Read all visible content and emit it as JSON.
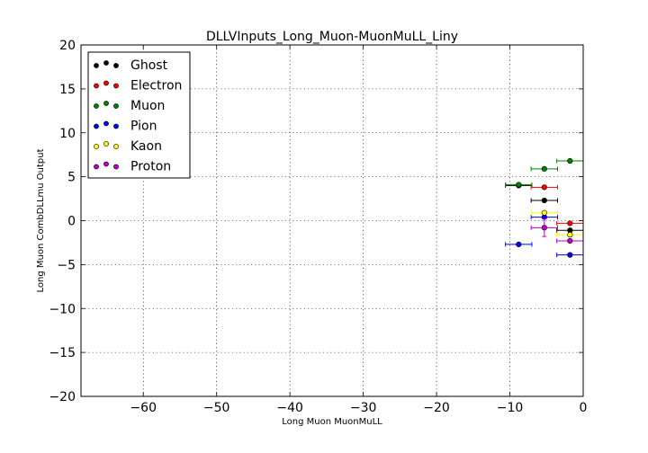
{
  "chart_data": {
    "type": "scatter",
    "title": "DLLVInputs_Long_Muon-MuonMuLL_Liny",
    "xlabel": "Long Muon MuonMuLL",
    "ylabel": "Long Muon CombDLLmu Output",
    "xlim": [
      -68.5,
      0
    ],
    "ylim": [
      -20,
      20
    ],
    "xticks": [
      -60,
      -50,
      -40,
      -30,
      -20,
      -10,
      0
    ],
    "yticks": [
      -20,
      -15,
      -10,
      -5,
      0,
      5,
      10,
      15,
      20
    ],
    "xtick_labels": [
      "−60",
      "−50",
      "−40",
      "−30",
      "−20",
      "−10",
      "0"
    ],
    "ytick_labels": [
      "−20",
      "−15",
      "−10",
      "−5",
      "0",
      "5",
      "10",
      "15",
      "20"
    ],
    "grid": true,
    "legend_position": "top-left",
    "series": [
      {
        "name": "Ghost",
        "color": "#000000",
        "points": [
          {
            "x": -8.8,
            "xerr": 1.8,
            "y": 4.0,
            "yerr": 0
          },
          {
            "x": -5.3,
            "xerr": 1.8,
            "y": 2.3,
            "yerr": 0
          },
          {
            "x": -1.8,
            "xerr": 1.8,
            "y": -1.1,
            "yerr": 0
          }
        ]
      },
      {
        "name": "Electron",
        "color": "#ff0000",
        "points": [
          {
            "x": -5.3,
            "xerr": 1.8,
            "y": 3.8,
            "yerr": 0
          },
          {
            "x": -1.8,
            "xerr": 1.8,
            "y": -0.3,
            "yerr": 0
          }
        ]
      },
      {
        "name": "Muon",
        "color": "#008000",
        "points": [
          {
            "x": -8.8,
            "xerr": 1.8,
            "y": 4.1,
            "yerr": 0
          },
          {
            "x": -5.3,
            "xerr": 1.8,
            "y": 5.9,
            "yerr": 0
          },
          {
            "x": -1.8,
            "xerr": 1.8,
            "y": 6.8,
            "yerr": 0
          }
        ]
      },
      {
        "name": "Pion",
        "color": "#0000ff",
        "points": [
          {
            "x": -8.8,
            "xerr": 1.8,
            "y": -2.7,
            "yerr": 0
          },
          {
            "x": -5.3,
            "xerr": 1.8,
            "y": 0.4,
            "yerr": 0
          },
          {
            "x": -1.8,
            "xerr": 1.8,
            "y": -3.9,
            "yerr": 0
          }
        ]
      },
      {
        "name": "Kaon",
        "color": "#ffff00",
        "points": [
          {
            "x": -5.3,
            "xerr": 1.8,
            "y": 0.9,
            "yerr": 0
          },
          {
            "x": -1.8,
            "xerr": 1.8,
            "y": -1.6,
            "yerr": 0
          }
        ]
      },
      {
        "name": "Proton",
        "color": "#bf00bf",
        "points": [
          {
            "x": -5.3,
            "xerr": 1.8,
            "y": -0.8,
            "yerr": 1.0
          },
          {
            "x": -1.8,
            "xerr": 1.8,
            "y": -2.3,
            "yerr": 0
          }
        ]
      }
    ]
  }
}
